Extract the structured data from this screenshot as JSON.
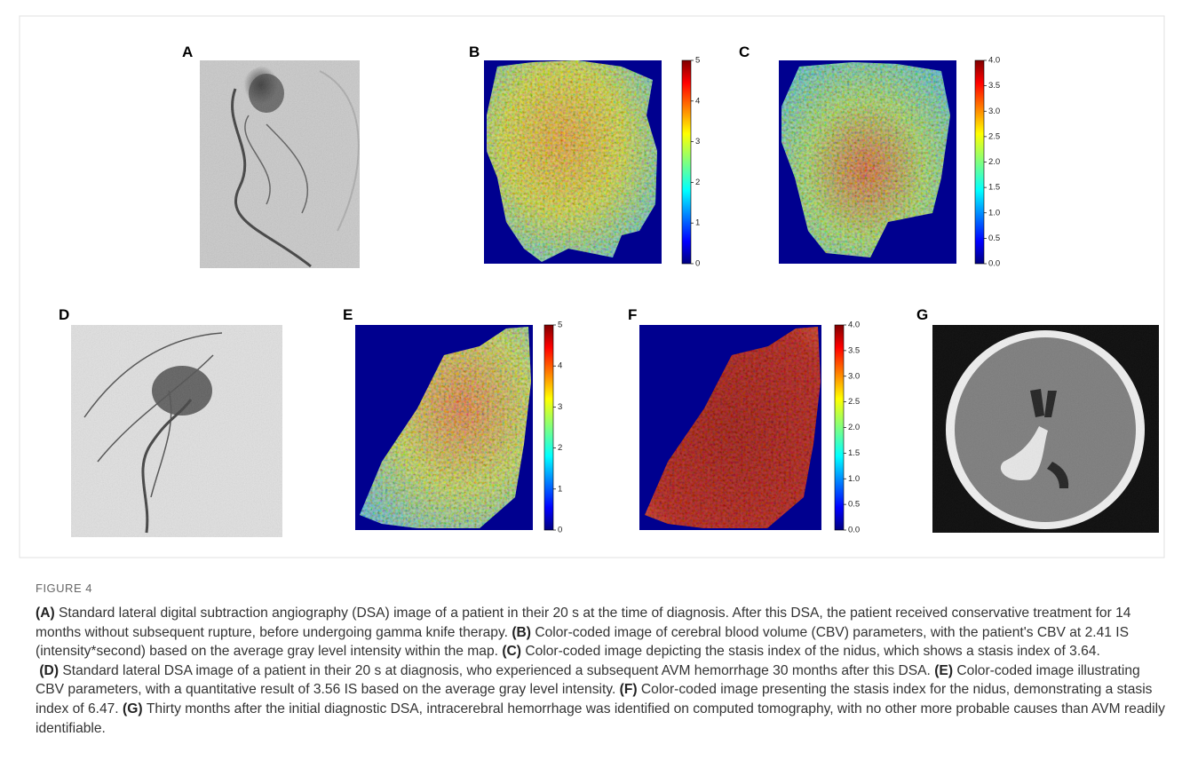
{
  "figure": {
    "panels": [
      {
        "label": "A"
      },
      {
        "label": "B",
        "colorbar": {
          "lim": [
            0,
            5
          ],
          "ticks": [
            0,
            1,
            2,
            3,
            4,
            5
          ]
        }
      },
      {
        "label": "C",
        "colorbar": {
          "lim": [
            0,
            4
          ],
          "ticks": [
            {
              "value": 0,
              "label": "0.0"
            },
            0.5,
            {
              "value": 1,
              "label": "1.0"
            },
            1.5,
            {
              "value": 2,
              "label": "2.0"
            },
            2.5,
            {
              "value": 3,
              "label": "3.0"
            },
            3.5,
            {
              "value": 4,
              "label": "4.0"
            }
          ]
        }
      },
      {
        "label": "D"
      },
      {
        "label": "E",
        "colorbar": {
          "lim": [
            0,
            5
          ],
          "ticks": [
            0,
            1,
            2,
            3,
            4,
            5
          ]
        }
      },
      {
        "label": "F",
        "colorbar": {
          "lim": [
            0,
            4
          ],
          "ticks": [
            {
              "value": 0,
              "label": "0.0"
            },
            0.5,
            {
              "value": 1,
              "label": "1.0"
            },
            1.5,
            {
              "value": 2,
              "label": "2.0"
            },
            2.5,
            {
              "value": 3,
              "label": "3.0"
            },
            3.5,
            {
              "value": 4,
              "label": "4.0"
            }
          ]
        }
      },
      {
        "label": "G"
      }
    ],
    "number": "FIGURE 4",
    "caption": [
      {
        "label": "(A)",
        "text": "Standard lateral digital subtraction angiography (DSA) image of a patient in their 20 s at the time of diagnosis. After this DSA, the patient received conservative treatment for 14 months without subsequent rupture, before undergoing gamma knife therapy."
      },
      {
        "label": "(B)",
        "text": "Color-coded image of cerebral blood volume (CBV) parameters, with the patient's CBV at 2.41 IS (intensity*second) based on the average gray level intensity within the map."
      },
      {
        "label": "(C)",
        "text": "Color-coded image depicting the stasis index of the nidus, which shows a stasis index of 3.64."
      },
      {
        "label": "(D)",
        "text": "Standard lateral DSA image of a patient in their 20 s at diagnosis, who experienced a subsequent AVM hemorrhage 30 months after this DSA."
      },
      {
        "label": "(E)",
        "text": "Color-coded image illustrating CBV parameters, with a quantitative result of 3.56 IS based on the average gray level intensity."
      },
      {
        "label": "(F)",
        "text": "Color-coded image presenting the stasis index for the nidus, demonstrating a stasis index of 6.47."
      },
      {
        "label": "(G)",
        "text": "Thirty months after the initial diagnostic DSA, intracerebral hemorrhage was identified on computed tomography, with no other more probable causes than AVM readily identifiable."
      }
    ]
  }
}
